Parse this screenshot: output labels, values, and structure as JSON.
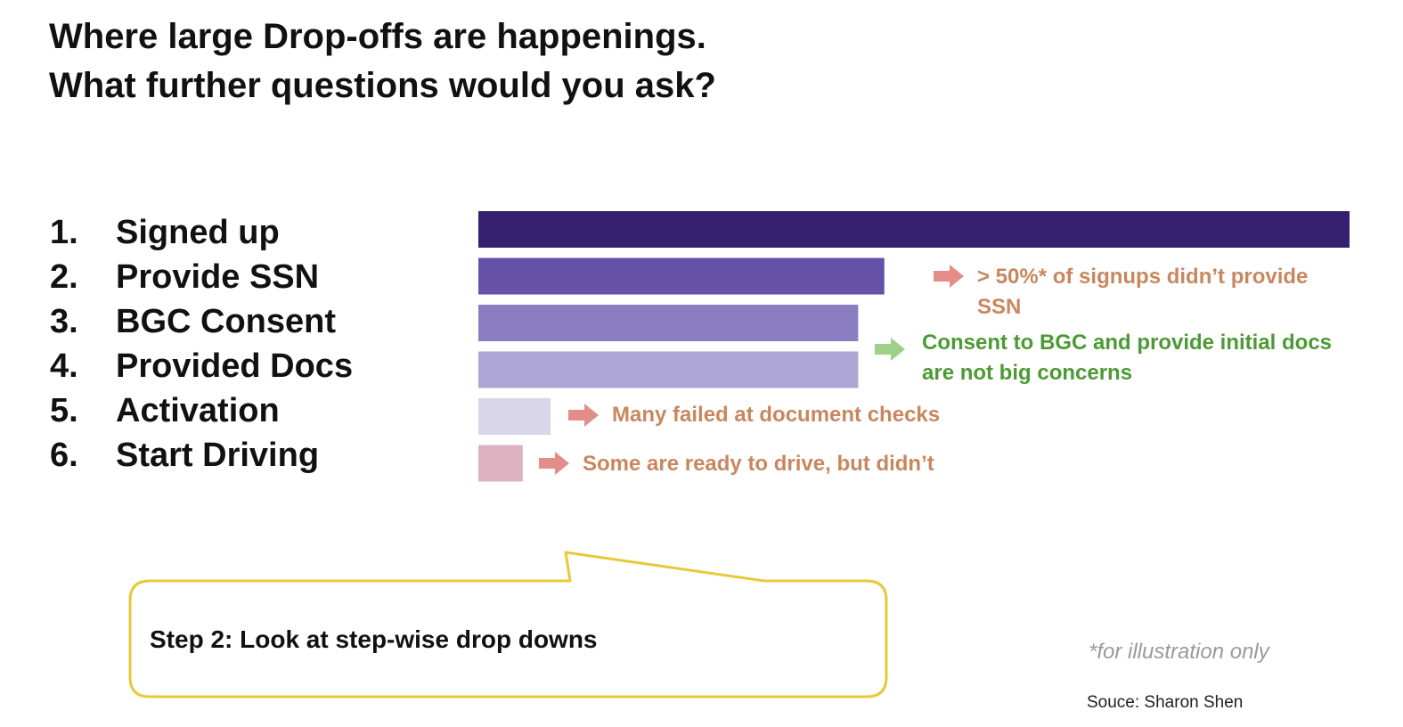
{
  "title": {
    "line1": "Where large Drop-offs are happenings.",
    "line2": "What further questions would you ask?"
  },
  "chart_data": {
    "type": "bar",
    "orientation": "horizontal",
    "categories": [
      "1. Signed up",
      "2. Provide SSN",
      "3. BGC Consent",
      "4. Provided Docs",
      "5. Activation",
      "6. Start Driving"
    ],
    "steps": [
      {
        "number": "1.",
        "label": "Signed up"
      },
      {
        "number": "2.",
        "label": "Provide SSN"
      },
      {
        "number": "3.",
        "label": "BGC Consent"
      },
      {
        "number": "4.",
        "label": "Provided Docs"
      },
      {
        "number": "5.",
        "label": "Activation"
      },
      {
        "number": "6.",
        "label": "Start Driving"
      }
    ],
    "values": [
      100,
      46.6,
      43.6,
      43.6,
      8.3,
      5.1
    ],
    "value_unit": "percent of signups (estimated, for illustration)",
    "bar_colors": [
      "#34206f",
      "#6651a8",
      "#8b7ec0",
      "#aea6d4",
      "#d9d5ea",
      "#dcb2c0"
    ],
    "xlim": [
      0,
      100
    ],
    "grid": false,
    "legend": "none",
    "title": "",
    "xlabel": "",
    "ylabel": "",
    "annotations": [
      {
        "id": "ssn",
        "lines": [
          "> 50%* of signups didn’t provide",
          "SSN"
        ],
        "color": "#c8875e",
        "arrow_color": "#e48c87"
      },
      {
        "id": "consent",
        "lines": [
          "Consent to BGC and provide initial docs",
          "are not big concerns"
        ],
        "color": "#4c9a34",
        "arrow_color": "#9fd08a"
      },
      {
        "id": "activation",
        "lines": [
          "Many failed at document checks"
        ],
        "color": "#c8875e",
        "arrow_color": "#e48c87"
      },
      {
        "id": "driving",
        "lines": [
          "Some are ready to drive, but didn’t"
        ],
        "color": "#c8875e",
        "arrow_color": "#e48c87"
      }
    ]
  },
  "callout_bubble": {
    "text": "Step 2: Look at step-wise drop downs",
    "border_color": "#e8c93a"
  },
  "footnote": "*for illustration only",
  "source": "Souce: Sharon Shen"
}
